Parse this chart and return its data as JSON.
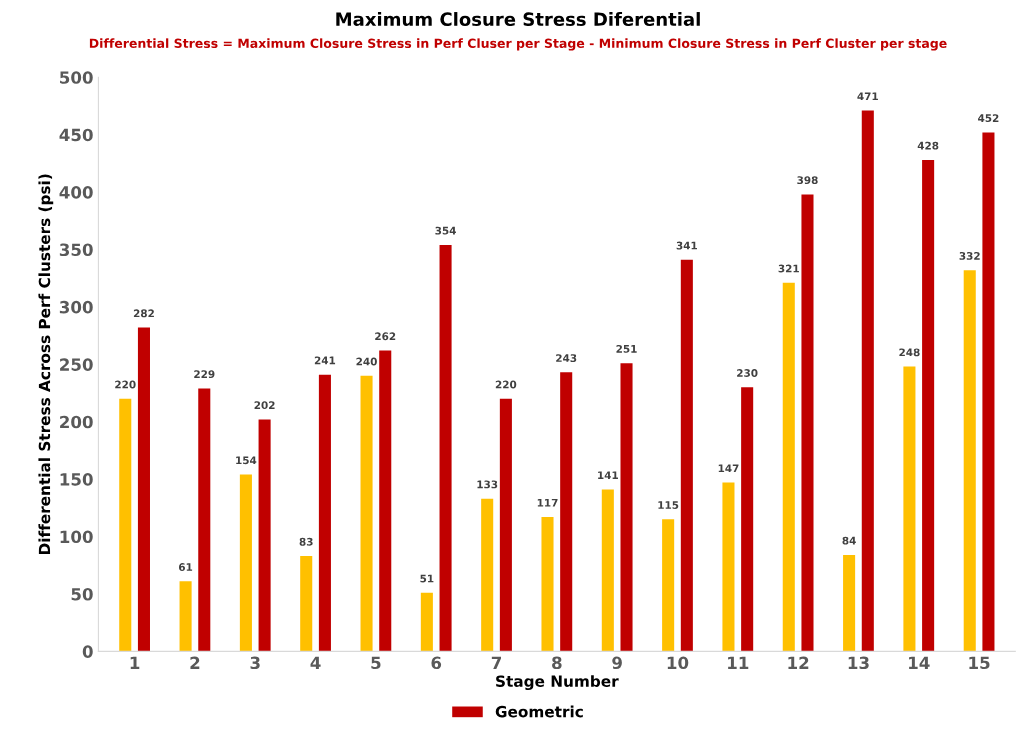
{
  "chart_data": {
    "type": "bar",
    "title": "Maximum Closure Stress Diferential",
    "subtitle": "Differential Stress = Maximum Closure Stress in Perf Cluser per Stage - Minimum Closure Stress in Perf Cluster per stage",
    "xlabel": "Stage Number",
    "ylabel": "Differential Stress Across Perf Clusters (psi)",
    "categories": [
      "1",
      "2",
      "3",
      "4",
      "5",
      "6",
      "7",
      "8",
      "9",
      "10",
      "11",
      "12",
      "13",
      "14",
      "15"
    ],
    "series": [
      {
        "color": "#ffc000",
        "values": [
          220,
          61,
          154,
          83,
          240,
          51,
          133,
          117,
          141,
          115,
          147,
          321,
          84,
          248,
          332
        ]
      },
      {
        "name": "Geometric",
        "color": "#c00000",
        "values": [
          282,
          229,
          202,
          241,
          262,
          354,
          220,
          243,
          251,
          341,
          230,
          398,
          471,
          428,
          452
        ]
      }
    ],
    "ylim": [
      0,
      500
    ],
    "yticks": [
      0,
      50,
      100,
      150,
      200,
      250,
      300,
      350,
      400,
      450,
      500
    ],
    "grid": false,
    "legend": "bottom",
    "data_labels": true
  }
}
